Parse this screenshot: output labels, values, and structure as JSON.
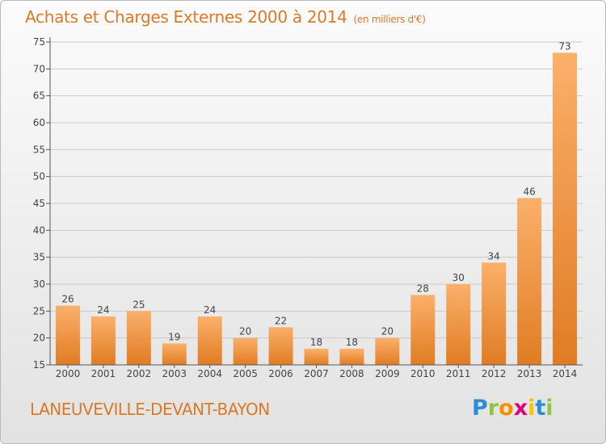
{
  "header": {
    "title": "Achats et Charges Externes 2000 à 2014",
    "unit": "(en milliers d'€)"
  },
  "commune": "LANEUVEVILLE-DEVANT-BAYON",
  "logo": {
    "text": "Proxiti",
    "letters": [
      "P",
      "r",
      "o",
      "x",
      "i",
      "t",
      "i"
    ],
    "colors": [
      "#2b8dd8",
      "#8dc63f",
      "#f39200",
      "#e2007a",
      "#f7c600",
      "#2b8dd8",
      "#8dc63f"
    ]
  },
  "colors": {
    "bar_light": "#fbb06a",
    "bar_dark": "#e07c23",
    "axis": "#555555",
    "grid": "#c9c9c9",
    "text": "#444444",
    "accent": "#d97a26"
  },
  "chart_data": {
    "type": "bar",
    "categories": [
      "2000",
      "2001",
      "2002",
      "2003",
      "2004",
      "2005",
      "2006",
      "2007",
      "2008",
      "2009",
      "2010",
      "2011",
      "2012",
      "2013",
      "2014"
    ],
    "values": [
      26,
      24,
      25,
      19,
      24,
      20,
      22,
      18,
      18,
      20,
      28,
      30,
      34,
      46,
      73
    ],
    "title": "Achats et Charges Externes 2000 à 2014",
    "xlabel": "",
    "ylabel": "",
    "ylim": [
      15,
      75
    ],
    "yticks": [
      15,
      20,
      25,
      30,
      35,
      40,
      45,
      50,
      55,
      60,
      65,
      70,
      75
    ],
    "grid": true,
    "data_labels": true
  }
}
